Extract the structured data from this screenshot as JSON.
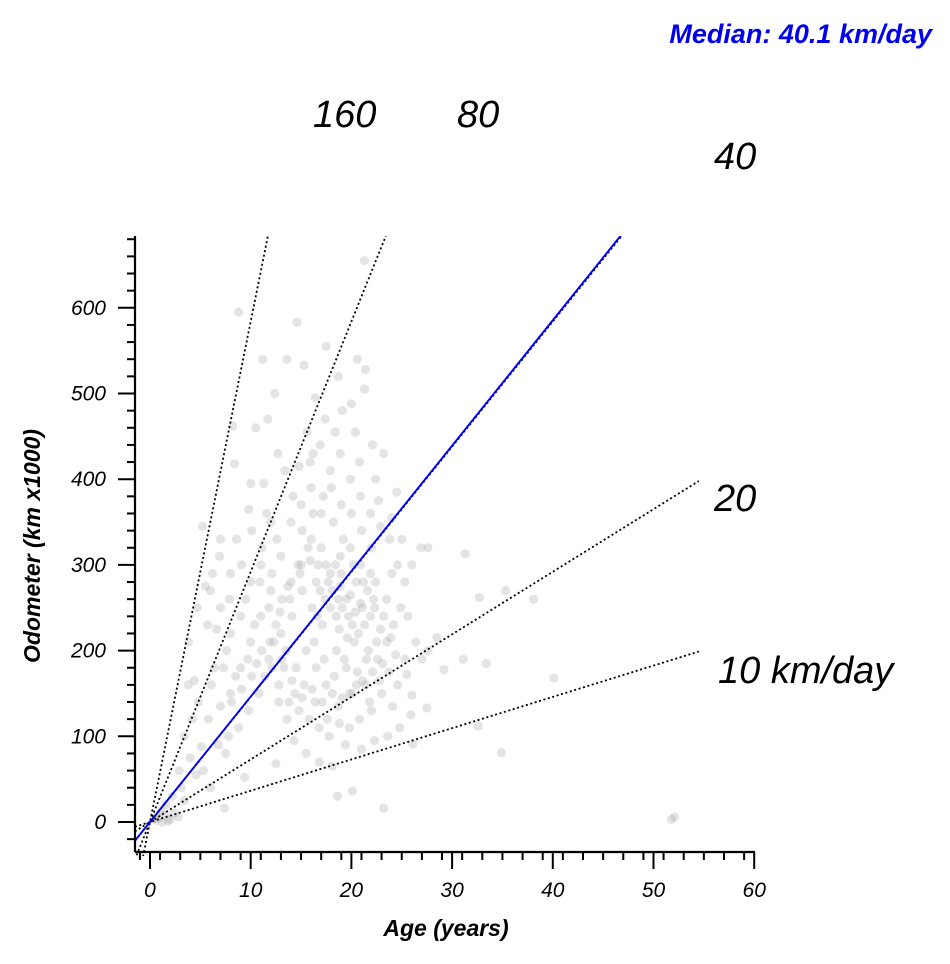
{
  "chart_data": {
    "type": "scatter",
    "title": "",
    "xlabel": "Age (years)",
    "ylabel": "Odometer (km x1000)",
    "xlim": [
      -1.5,
      60
    ],
    "ylim": [
      -35,
      685
    ],
    "x_ticks": [
      0,
      10,
      20,
      30,
      40,
      50,
      60
    ],
    "x_tick_labels": [
      "0",
      "10",
      "20",
      "30",
      "40",
      "50",
      "60"
    ],
    "y_ticks": [
      0,
      100,
      200,
      300,
      400,
      500,
      600
    ],
    "y_tick_labels": [
      "0",
      "100",
      "200",
      "300",
      "400",
      "500",
      "600"
    ],
    "grid": false,
    "point_color": "#aaaaaa",
    "median_color": "#0000ee",
    "median_text": "Median: 40.1 km/day",
    "median_rate_km_per_day": 40.1,
    "reference_lines": [
      {
        "rate_km_per_day": 10,
        "label": "10 km/day"
      },
      {
        "rate_km_per_day": 20,
        "label": "20"
      },
      {
        "rate_km_per_day": 40,
        "label": "40"
      },
      {
        "rate_km_per_day": 80,
        "label": "80"
      },
      {
        "rate_km_per_day": 160,
        "label": "160"
      }
    ],
    "points": [
      [
        0.6,
        2
      ],
      [
        0.9,
        5
      ],
      [
        1.2,
        0
      ],
      [
        1.5,
        8
      ],
      [
        2.0,
        3
      ],
      [
        2.4,
        10
      ],
      [
        1.8,
        1
      ],
      [
        0.4,
        4
      ],
      [
        1.1,
        12
      ],
      [
        2.8,
        6
      ],
      [
        51.8,
        3
      ],
      [
        52.1,
        6
      ],
      [
        23.2,
        16
      ],
      [
        18.6,
        30
      ],
      [
        20.1,
        36
      ],
      [
        7.4,
        16
      ],
      [
        3.1,
        40
      ],
      [
        4.6,
        55
      ],
      [
        8.8,
        595
      ],
      [
        21.3,
        655
      ],
      [
        14.6,
        583
      ],
      [
        17.5,
        555
      ],
      [
        11.2,
        540
      ],
      [
        13.6,
        540
      ],
      [
        20.6,
        540
      ],
      [
        15.3,
        533
      ],
      [
        21.4,
        528
      ],
      [
        18.7,
        520
      ],
      [
        21.3,
        505
      ],
      [
        12.4,
        500
      ],
      [
        16.4,
        495
      ],
      [
        20.0,
        488
      ],
      [
        10.5,
        460
      ],
      [
        11.7,
        470
      ],
      [
        8.2,
        462
      ],
      [
        20.4,
        455
      ],
      [
        22.1,
        440
      ],
      [
        23.2,
        430
      ],
      [
        8.4,
        418
      ],
      [
        22.4,
        400
      ],
      [
        10.0,
        395
      ],
      [
        24.5,
        385
      ],
      [
        27.6,
        320
      ],
      [
        26.9,
        320
      ],
      [
        31.3,
        313
      ],
      [
        38.1,
        260
      ],
      [
        35.3,
        270
      ],
      [
        32.7,
        262
      ],
      [
        28.5,
        215
      ],
      [
        27.6,
        200
      ],
      [
        29.2,
        178
      ],
      [
        33.4,
        185
      ],
      [
        40.1,
        168
      ],
      [
        31.1,
        190
      ],
      [
        25.5,
        172
      ],
      [
        26.0,
        148
      ],
      [
        27.5,
        133
      ],
      [
        32.6,
        112
      ],
      [
        34.9,
        81
      ],
      [
        26.1,
        91
      ],
      [
        6.0,
        40
      ],
      [
        9.4,
        52
      ],
      [
        7.5,
        80
      ],
      [
        12.5,
        68
      ],
      [
        4.2,
        120
      ],
      [
        4.4,
        165
      ],
      [
        3.4,
        100
      ],
      [
        5.1,
        88
      ],
      [
        7.0,
        135
      ],
      [
        5.7,
        230
      ],
      [
        6.6,
        225
      ],
      [
        7.6,
        200
      ],
      [
        4.7,
        250
      ],
      [
        5.5,
        275
      ],
      [
        3.8,
        210
      ],
      [
        6.2,
        290
      ],
      [
        5.2,
        345
      ],
      [
        6.9,
        310
      ],
      [
        8.6,
        330
      ],
      [
        9.1,
        300
      ],
      [
        7.9,
        260
      ],
      [
        6.4,
        180
      ],
      [
        8.0,
        150
      ],
      [
        9.7,
        190
      ],
      [
        10.4,
        230
      ],
      [
        9.5,
        260
      ],
      [
        10.9,
        280
      ],
      [
        11.8,
        250
      ],
      [
        12.3,
        210
      ],
      [
        11.4,
        170
      ],
      [
        12.8,
        140
      ],
      [
        13.6,
        120
      ],
      [
        14.3,
        95
      ],
      [
        15.5,
        80
      ],
      [
        16.8,
        70
      ],
      [
        18.1,
        65
      ],
      [
        19.4,
        90
      ],
      [
        21.0,
        85
      ],
      [
        22.3,
        95
      ],
      [
        23.6,
        100
      ],
      [
        24.8,
        110
      ],
      [
        25.9,
        125
      ],
      [
        24.1,
        135
      ],
      [
        23.0,
        150
      ],
      [
        22.0,
        130
      ],
      [
        21.4,
        160
      ],
      [
        20.6,
        175
      ],
      [
        19.8,
        150
      ],
      [
        18.7,
        135
      ],
      [
        17.6,
        120
      ],
      [
        16.4,
        140
      ],
      [
        15.3,
        160
      ],
      [
        14.4,
        150
      ],
      [
        13.3,
        180
      ],
      [
        13.0,
        220
      ],
      [
        13.9,
        260
      ],
      [
        14.7,
        300
      ],
      [
        15.1,
        340
      ],
      [
        14.2,
        380
      ],
      [
        13.4,
        410
      ],
      [
        15.9,
        420
      ],
      [
        16.9,
        440
      ],
      [
        17.9,
        410
      ],
      [
        18.9,
        430
      ],
      [
        19.9,
        400
      ],
      [
        20.9,
        380
      ],
      [
        21.9,
        360
      ],
      [
        22.9,
        345
      ],
      [
        23.8,
        330
      ],
      [
        24.6,
        300
      ],
      [
        25.3,
        280
      ],
      [
        24.9,
        250
      ],
      [
        24.2,
        230
      ],
      [
        23.5,
        210
      ],
      [
        22.6,
        190
      ],
      [
        21.7,
        200
      ],
      [
        20.7,
        220
      ],
      [
        19.7,
        240
      ],
      [
        18.7,
        260
      ],
      [
        17.7,
        280
      ],
      [
        16.7,
        300
      ],
      [
        15.7,
        320
      ],
      [
        16.2,
        360
      ],
      [
        17.2,
        380
      ],
      [
        18.2,
        350
      ],
      [
        19.2,
        330
      ],
      [
        20.2,
        300
      ],
      [
        21.2,
        280
      ],
      [
        22.2,
        260
      ],
      [
        23.2,
        240
      ],
      [
        17.1,
        230
      ],
      [
        16.1,
        250
      ],
      [
        15.1,
        270
      ],
      [
        14.1,
        240
      ],
      [
        13.1,
        260
      ],
      [
        12.1,
        290
      ],
      [
        11.1,
        320
      ],
      [
        10.1,
        340
      ],
      [
        11.6,
        360
      ],
      [
        12.6,
        330
      ],
      [
        16.3,
        210
      ],
      [
        17.3,
        190
      ],
      [
        18.3,
        170
      ],
      [
        19.3,
        190
      ],
      [
        20.3,
        210
      ],
      [
        21.3,
        230
      ],
      [
        22.3,
        250
      ],
      [
        18.5,
        240
      ],
      [
        19.5,
        260
      ],
      [
        20.5,
        280
      ],
      [
        17.5,
        300
      ],
      [
        16.5,
        280
      ],
      [
        18.9,
        310
      ],
      [
        19.9,
        320
      ],
      [
        20.9,
        300
      ],
      [
        21.9,
        290
      ],
      [
        17.9,
        250
      ],
      [
        18.1,
        270
      ],
      [
        19.1,
        250
      ],
      [
        20.1,
        230
      ],
      [
        21.1,
        250
      ],
      [
        17.4,
        260
      ],
      [
        16.6,
        240
      ],
      [
        18.8,
        225
      ],
      [
        19.6,
        215
      ],
      [
        20.4,
        245
      ],
      [
        21.6,
        270
      ],
      [
        22.4,
        280
      ],
      [
        19.0,
        290
      ],
      [
        18.4,
        300
      ],
      [
        17.0,
        320
      ],
      [
        16.0,
        330
      ],
      [
        15.0,
        300
      ],
      [
        14.0,
        280
      ],
      [
        12.0,
        270
      ],
      [
        11.0,
        240
      ],
      [
        10.0,
        210
      ],
      [
        9.0,
        180
      ],
      [
        8.0,
        220
      ],
      [
        7.0,
        250
      ],
      [
        6.0,
        270
      ],
      [
        12.5,
        230
      ],
      [
        13.5,
        200
      ],
      [
        14.5,
        180
      ],
      [
        15.5,
        200
      ],
      [
        16.5,
        180
      ],
      [
        17.5,
        160
      ],
      [
        18.5,
        200
      ],
      [
        19.5,
        180
      ],
      [
        20.5,
        160
      ],
      [
        21.5,
        190
      ],
      [
        22.5,
        210
      ],
      [
        23.5,
        260
      ],
      [
        24.0,
        290
      ],
      [
        22.0,
        320
      ],
      [
        21.0,
        340
      ],
      [
        20.0,
        360
      ],
      [
        19.0,
        370
      ],
      [
        18.0,
        390
      ],
      [
        17.0,
        360
      ],
      [
        16.0,
        390
      ],
      [
        15.0,
        370
      ],
      [
        14.0,
        350
      ],
      [
        13.0,
        310
      ],
      [
        12.0,
        350
      ],
      [
        11.0,
        300
      ],
      [
        10.0,
        280
      ],
      [
        9.0,
        240
      ],
      [
        8.0,
        290
      ],
      [
        7.0,
        330
      ],
      [
        9.8,
        365
      ],
      [
        11.3,
        395
      ],
      [
        12.7,
        430
      ],
      [
        15.6,
        455
      ],
      [
        17.4,
        470
      ],
      [
        19.1,
        480
      ],
      [
        18.4,
        455
      ],
      [
        16.2,
        430
      ],
      [
        14.8,
        415
      ],
      [
        20.8,
        420
      ],
      [
        22.7,
        375
      ],
      [
        24.0,
        355
      ],
      [
        25.0,
        330
      ],
      [
        26.0,
        300
      ],
      [
        25.6,
        240
      ],
      [
        26.4,
        210
      ],
      [
        27.0,
        190
      ],
      [
        25.3,
        190
      ],
      [
        24.6,
        160
      ],
      [
        23.7,
        175
      ],
      [
        22.8,
        165
      ],
      [
        21.8,
        140
      ],
      [
        20.8,
        120
      ],
      [
        19.8,
        110
      ],
      [
        18.8,
        115
      ],
      [
        17.8,
        100
      ],
      [
        16.8,
        110
      ],
      [
        15.8,
        120
      ],
      [
        14.8,
        130
      ],
      [
        13.8,
        140
      ],
      [
        12.8,
        160
      ],
      [
        11.8,
        190
      ],
      [
        10.8,
        150
      ],
      [
        9.8,
        130
      ],
      [
        8.8,
        110
      ],
      [
        7.8,
        100
      ],
      [
        6.8,
        90
      ],
      [
        5.8,
        120
      ],
      [
        4.8,
        140
      ],
      [
        3.8,
        160
      ],
      [
        2.9,
        60
      ],
      [
        2.2,
        30
      ],
      [
        1.6,
        20
      ],
      [
        3.4,
        25
      ],
      [
        4.0,
        75
      ],
      [
        5.3,
        60
      ],
      [
        6.1,
        160
      ],
      [
        7.3,
        180
      ],
      [
        8.5,
        170
      ],
      [
        10.6,
        185
      ],
      [
        11.9,
        210
      ],
      [
        12.9,
        245
      ],
      [
        13.7,
        275
      ],
      [
        14.9,
        290
      ],
      [
        15.9,
        305
      ],
      [
        16.9,
        270
      ],
      [
        17.9,
        290
      ],
      [
        18.9,
        275
      ],
      [
        19.9,
        265
      ],
      [
        20.9,
        255
      ],
      [
        21.9,
        240
      ],
      [
        22.9,
        225
      ],
      [
        23.9,
        215
      ],
      [
        24.4,
        195
      ],
      [
        23.1,
        185
      ],
      [
        22.1,
        175
      ],
      [
        21.1,
        165
      ],
      [
        20.1,
        150
      ],
      [
        19.1,
        145
      ],
      [
        18.1,
        150
      ],
      [
        17.1,
        140
      ],
      [
        16.1,
        155
      ],
      [
        15.1,
        145
      ],
      [
        14.1,
        165
      ],
      [
        13.1,
        190
      ],
      [
        12.1,
        180
      ],
      [
        11.1,
        200
      ],
      [
        10.1,
        170
      ],
      [
        9.1,
        155
      ],
      [
        8.1,
        140
      ]
    ]
  }
}
